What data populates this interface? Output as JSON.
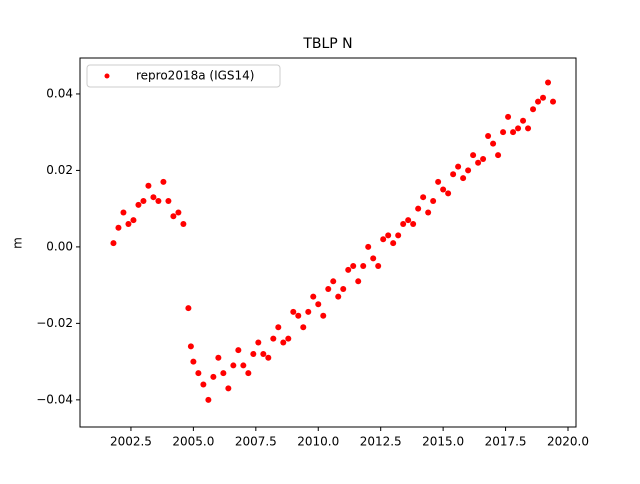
{
  "chart_data": {
    "type": "scatter",
    "title": "TBLP N",
    "ylabel": "m",
    "legend": "upper left",
    "series": [
      {
        "name": "repro2018a (IGS14)",
        "color": "#ff0000",
        "x": [
          2001.8,
          2002.0,
          2002.2,
          2002.4,
          2002.6,
          2002.8,
          2003.0,
          2003.2,
          2003.4,
          2003.6,
          2003.8,
          2004.0,
          2004.2,
          2004.4,
          2004.6,
          2004.8,
          2004.9,
          2005.0,
          2005.2,
          2005.4,
          2005.6,
          2005.8,
          2006.0,
          2006.2,
          2006.4,
          2006.6,
          2006.8,
          2007.0,
          2007.2,
          2007.4,
          2007.6,
          2007.8,
          2008.0,
          2008.2,
          2008.4,
          2008.6,
          2008.8,
          2009.0,
          2009.2,
          2009.4,
          2009.6,
          2009.8,
          2010.0,
          2010.2,
          2010.4,
          2010.6,
          2010.8,
          2011.0,
          2011.2,
          2011.4,
          2011.6,
          2011.8,
          2012.0,
          2012.2,
          2012.4,
          2012.6,
          2012.8,
          2013.0,
          2013.2,
          2013.4,
          2013.6,
          2013.8,
          2014.0,
          2014.2,
          2014.4,
          2014.6,
          2014.8,
          2015.0,
          2015.2,
          2015.4,
          2015.6,
          2015.8,
          2016.0,
          2016.2,
          2016.4,
          2016.6,
          2016.8,
          2017.0,
          2017.2,
          2017.4,
          2017.6,
          2017.8,
          2018.0,
          2018.2,
          2018.4,
          2018.6,
          2018.8,
          2019.0,
          2019.2,
          2019.4
        ],
        "values": [
          0.001,
          0.005,
          0.009,
          0.006,
          0.007,
          0.011,
          0.012,
          0.016,
          0.013,
          0.012,
          0.017,
          0.012,
          0.008,
          0.009,
          0.006,
          -0.016,
          -0.026,
          -0.03,
          -0.033,
          -0.036,
          -0.04,
          -0.034,
          -0.029,
          -0.033,
          -0.037,
          -0.031,
          -0.027,
          -0.031,
          -0.033,
          -0.028,
          -0.025,
          -0.028,
          -0.029,
          -0.024,
          -0.021,
          -0.025,
          -0.024,
          -0.017,
          -0.018,
          -0.021,
          -0.017,
          -0.013,
          -0.015,
          -0.018,
          -0.011,
          -0.009,
          -0.013,
          -0.011,
          -0.006,
          -0.005,
          -0.009,
          -0.005,
          0.0,
          -0.003,
          -0.005,
          0.002,
          0.003,
          0.001,
          0.003,
          0.006,
          0.007,
          0.006,
          0.01,
          0.013,
          0.009,
          0.012,
          0.017,
          0.015,
          0.014,
          0.019,
          0.021,
          0.018,
          0.02,
          0.024,
          0.022,
          0.023,
          0.029,
          0.027,
          0.024,
          0.03,
          0.034,
          0.03,
          0.031,
          0.033,
          0.031,
          0.036,
          0.038,
          0.039,
          0.043,
          0.038
        ]
      }
    ],
    "xlim": [
      2000.46,
      2020.32
    ],
    "ylim": [
      -0.0471,
      0.0494
    ],
    "xticks": [
      {
        "value": 2002.5,
        "label": "2002.5"
      },
      {
        "value": 2005,
        "label": "2005.0"
      },
      {
        "value": 2007.5,
        "label": "2007.5"
      },
      {
        "value": 2010,
        "label": "2010.0"
      },
      {
        "value": 2012.5,
        "label": "2012.5"
      },
      {
        "value": 2015,
        "label": "2015.0"
      },
      {
        "value": 2017.5,
        "label": "2017.5"
      },
      {
        "value": 2020,
        "label": "2020.0"
      }
    ],
    "yticks": [
      {
        "value": -0.04,
        "label": "−0.04"
      },
      {
        "value": -0.02,
        "label": "−0.02"
      },
      {
        "value": 0,
        "label": "0.00"
      },
      {
        "value": 0.02,
        "label": "0.02"
      },
      {
        "value": 0.04,
        "label": "0.04"
      }
    ]
  }
}
